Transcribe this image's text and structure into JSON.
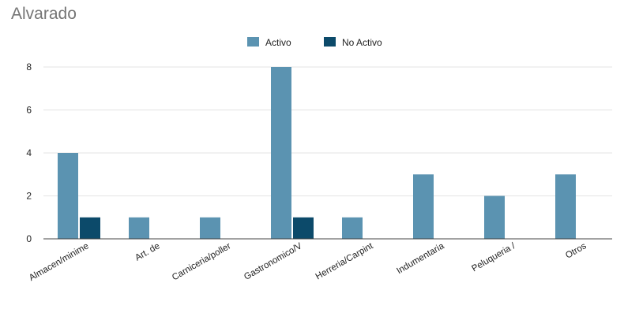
{
  "chart_data": {
    "type": "bar",
    "title": "Alvarado",
    "xlabel": "",
    "ylabel": "",
    "categories": [
      "Almacen/minime",
      "Art. de",
      "Carniceria/poller",
      "Gastronomico/V",
      "Herreria/Carpint",
      "Indumentaria",
      "Peluqueria /",
      "Otros"
    ],
    "series": [
      {
        "name": "Activo",
        "color": "#5b93b1",
        "values": [
          4,
          1,
          1,
          8,
          1,
          3,
          2,
          3
        ]
      },
      {
        "name": "No Activo",
        "color": "#0c4a6a",
        "values": [
          1,
          0,
          0,
          1,
          0,
          0,
          0,
          0
        ]
      }
    ],
    "yticks": [
      0,
      2,
      4,
      6,
      8
    ],
    "ylim": [
      0,
      8
    ],
    "grid": true,
    "legend_position": "top-center"
  }
}
